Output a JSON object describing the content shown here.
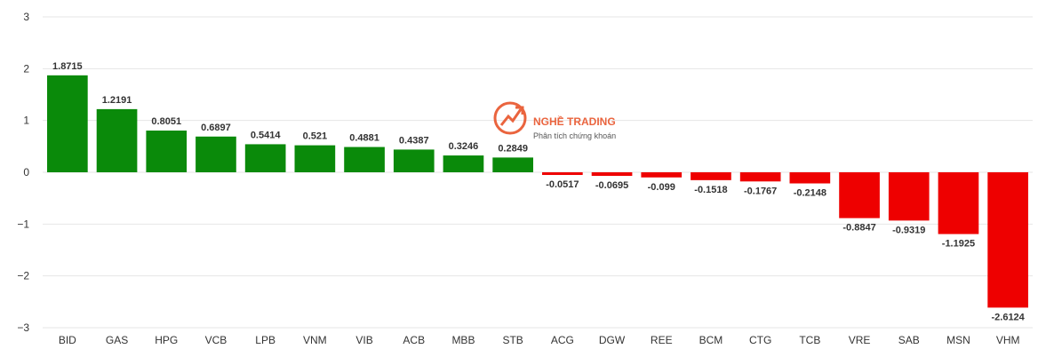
{
  "chart_data": {
    "type": "bar",
    "categories": [
      "BID",
      "GAS",
      "HPG",
      "VCB",
      "LPB",
      "VNM",
      "VIB",
      "ACB",
      "MBB",
      "STB",
      "ACG",
      "DGW",
      "REE",
      "BCM",
      "CTG",
      "TCB",
      "VRE",
      "SAB",
      "MSN",
      "VHM"
    ],
    "values": [
      1.8715,
      1.2191,
      0.8051,
      0.6897,
      0.5414,
      0.521,
      0.4881,
      0.4387,
      0.3246,
      0.2849,
      -0.0517,
      -0.0695,
      -0.099,
      -0.1518,
      -0.1767,
      -0.2148,
      -0.8847,
      -0.9319,
      -1.1925,
      -2.6124
    ],
    "data_labels": [
      "1.8715",
      "1.2191",
      "0.8051",
      "0.6897",
      "0.5414",
      "0.521",
      "0.4881",
      "0.4387",
      "0.3246",
      "0.2849",
      "-0.0517",
      "-0.0695",
      "-0.099",
      "-0.1518",
      "-0.1767",
      "-0.2148",
      "-0.8847",
      "-0.9319",
      "-1.1925",
      "-2.6124"
    ],
    "y_tick_labels": [
      "3",
      "2",
      "1",
      "0",
      "−1",
      "−2",
      "−3"
    ],
    "y_ticks": [
      3,
      2,
      1,
      0,
      -1,
      -2,
      -3
    ],
    "ylim": [
      -3,
      3
    ],
    "grid": true,
    "legend": "none",
    "colors": {
      "positive": "#0a8a0a",
      "negative": "#ee0000",
      "grid": "#e6e6e6",
      "text": "#333333"
    }
  },
  "watermark": {
    "title": "NGHỀ TRADING",
    "subtitle": "Phân tích chứng khoán",
    "icon": "trading-logo-icon",
    "color": "#e8542a"
  }
}
